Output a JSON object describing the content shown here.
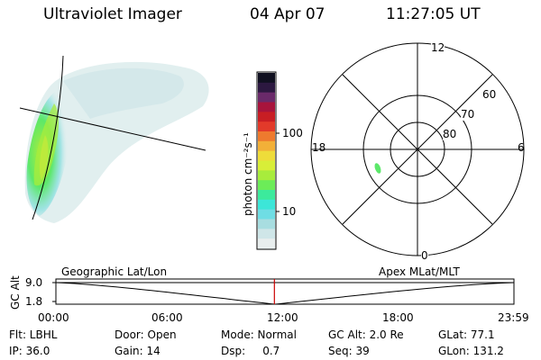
{
  "header": {
    "instrument": "Ultraviolet Imager",
    "date": "04 Apr 07",
    "time": "11:27:05 UT"
  },
  "colorbar": {
    "unit_label": "photon cm⁻²s⁻¹",
    "ticks": [
      "100",
      "10"
    ]
  },
  "polar_plot": {
    "mlt_labels": {
      "top": "12",
      "left": "18",
      "right": "6",
      "bottom": "0"
    },
    "lat_labels": [
      "60",
      "70",
      "80"
    ]
  },
  "timeline": {
    "y_label": "GC Alt",
    "y_ticks": [
      "9.0",
      "1.8"
    ],
    "left_label": "Geographic Lat/Lon",
    "right_label": "Apex  MLat/MLT",
    "x_ticks": [
      "00:00",
      "06:00",
      "12:00",
      "18:00",
      "23:59"
    ],
    "current_time_fraction": 0.477
  },
  "footer": {
    "row1": {
      "flt": "Flt: LBHL",
      "door": "Door: Open",
      "mode": "Mode: Normal",
      "gcalt": "GC Alt: 2.0 Re",
      "glat": "GLat:  77.1"
    },
    "row2": {
      "ip": "IP: 36.0",
      "gain": "Gain: 14",
      "dsp": "Dsp:     0.7",
      "seq": "Seq: 39",
      "glon": "GLon: 131.2"
    }
  },
  "colors": {
    "colorbar": [
      "#e8eeee",
      "#cfe6e8",
      "#a8dde0",
      "#6fdde4",
      "#3ce6d8",
      "#3cea9c",
      "#6cec58",
      "#a8ec3c",
      "#d8ee38",
      "#eedc3a",
      "#f2b038",
      "#ee7a2e",
      "#e23a2a",
      "#c81e24",
      "#a8143c",
      "#6a2a6a",
      "#2c1840",
      "#101020"
    ],
    "current_time_marker": "#cc0000"
  }
}
